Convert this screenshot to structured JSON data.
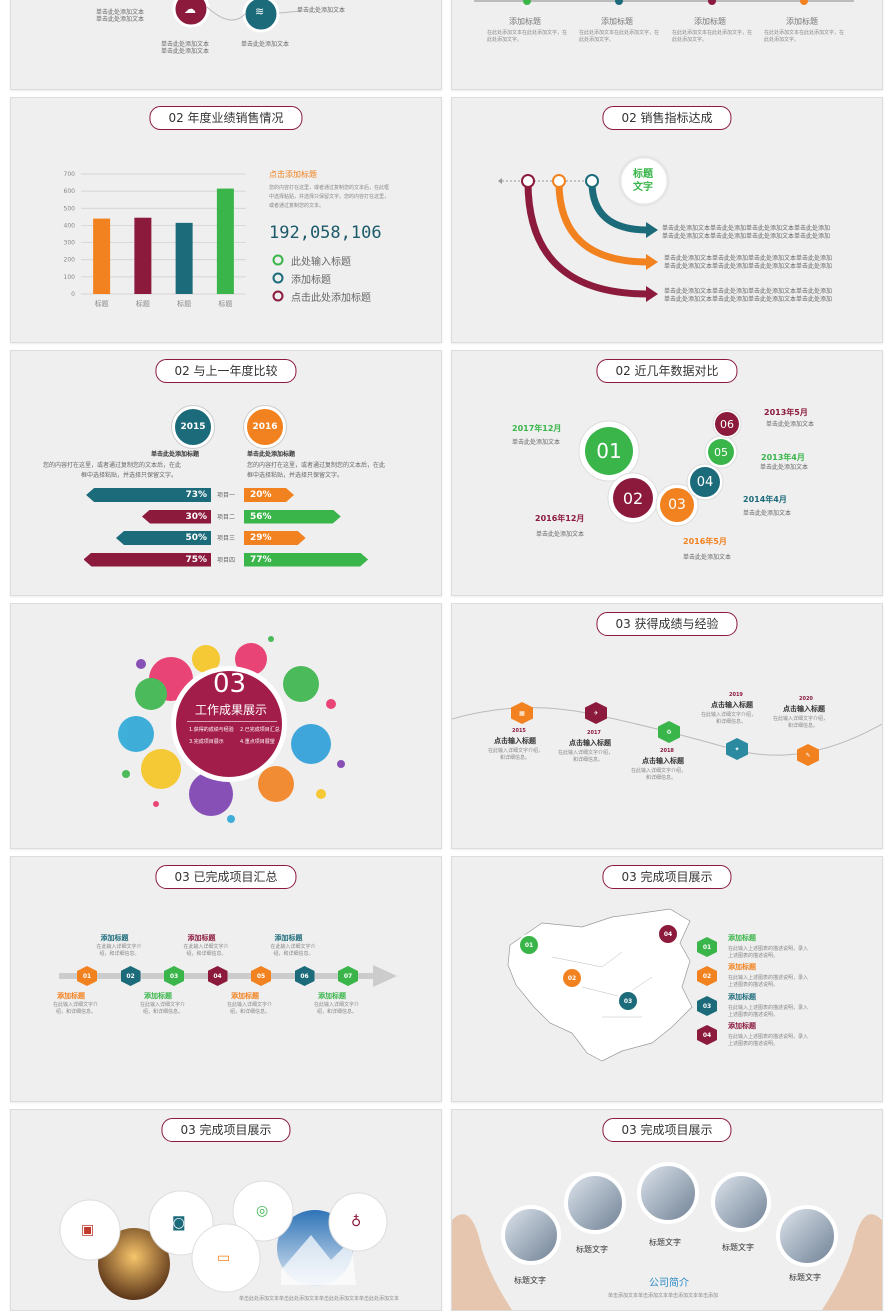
{
  "colors": {
    "orange": "#f28220",
    "wine": "#8b1a3d",
    "teal": "#1c6b7a",
    "green": "#39b54a"
  },
  "s0": {
    "texts": [
      "单击此处添加文本",
      "单击此处添加文本",
      "单击此处添加文本",
      "单击此处添加文本",
      "单击此处添加文本",
      "单击此处添加文本"
    ],
    "icons": [
      "cloud-icon",
      "wifi-icon"
    ]
  },
  "s1": {
    "labels": [
      "添加标题",
      "添加标题",
      "添加标题",
      "添加标题"
    ],
    "desc": [
      "在此处添加文本在此处添加文字，在此处添加文字。",
      "在此处添加文本在此处添加文字，在此处添加文字。",
      "在此处添加文本在此处添加文字，在此处添加文字。",
      "在此处添加文本在此处添加文字，在此处添加文字。"
    ]
  },
  "s2": {
    "title": "02  年度业绩销售情况",
    "heading": "点击添加标题",
    "paragraph": [
      "您的内容打在这里，或者通过复制您的文本后，在此框",
      "中选择粘贴，并选择只保留文字。您的内容打在这里，",
      "或者通过复制您的文本。"
    ],
    "big_number": "192,058,106",
    "legend": [
      "此处输入标题",
      "添加标题",
      "点击此处添加标题"
    ],
    "chart_data": {
      "type": "bar",
      "categories": [
        "标题",
        "标题",
        "标题",
        "标题"
      ],
      "values": [
        440,
        445,
        415,
        615
      ],
      "colors": [
        "#f28220",
        "#8b1a3d",
        "#1c6b7a",
        "#39b54a"
      ],
      "ylim": [
        0,
        700
      ],
      "yticks": [
        "0",
        "100",
        "200",
        "300",
        "400",
        "500",
        "600",
        "700"
      ]
    }
  },
  "s3": {
    "title": "02  销售指标达成",
    "badge": [
      "标题",
      "文字"
    ],
    "lines": [
      "单击此处添加文本单击此处添加单击此处添加文本单击此处添加",
      "单击此处添加文本单击此处添加单击此处添加文本单击此处添加"
    ]
  },
  "s4": {
    "title": "02  与上一年度比较",
    "year_a": "2015",
    "year_b": "2016",
    "head_a": "单击此处添加标题",
    "head_b": "单击此处添加标题",
    "para": [
      "您的内容打在这里，或者通过复制您的文本后，在此",
      "框中选择粘贴，并选择只保留文字。"
    ],
    "rows": [
      {
        "name": "项目一",
        "a": "73%",
        "b": "20%"
      },
      {
        "name": "项目二",
        "a": "30%",
        "b": "56%"
      },
      {
        "name": "项目三",
        "a": "50%",
        "b": "29%"
      },
      {
        "name": "项目四",
        "a": "75%",
        "b": "77%"
      }
    ]
  },
  "s5": {
    "title": "02  近几年数据对比",
    "nums": [
      "01",
      "02",
      "03",
      "04",
      "05",
      "06"
    ],
    "dates": [
      "2017年12月",
      "2016年12月",
      "2016年5月",
      "2014年4月",
      "2013年4月",
      "2013年5月"
    ],
    "desc": "单击此处添加文本"
  },
  "s6": {
    "num": "03",
    "title": "工作成果展示",
    "items": [
      "1.获得的成绩与经验",
      "2.已完成项目汇总",
      "3.完成项目展示",
      "4.重点项目展望"
    ]
  },
  "s7": {
    "title": "03  获得成绩与经验",
    "years": [
      "2015",
      "2017",
      "2018",
      "2019",
      "2020"
    ],
    "head": "点击输入标题",
    "desc": [
      "在此输入详细文字介绍，",
      "和详细信息。"
    ]
  },
  "s8": {
    "title": "03  已完成项目汇总",
    "nums": [
      "01",
      "02",
      "03",
      "04",
      "05",
      "06",
      "07"
    ],
    "head": "添加标题",
    "desc": [
      "在此输入详细文字介",
      "绍，和详细信息。"
    ]
  },
  "s9": {
    "title": "03  完成项目展示",
    "nums": [
      "01",
      "02",
      "03",
      "04"
    ],
    "head": "添加标题",
    "desc": [
      "在此输入上述图表的描述说明，录入",
      "上述图表的描述说明。"
    ]
  },
  "s10": {
    "title": "03  完成项目展示",
    "footer": "单击此处添加文本单击此处添加文本单击此处添加文本单击此处添加文本"
  },
  "s11": {
    "title": "03  完成项目展示",
    "labels": [
      "标题文字",
      "标题文字",
      "标题文字",
      "标题文字",
      "标题文字"
    ],
    "company": "公司简介",
    "footer": "单击添加文本单击添加文本单击添加文本单击添加"
  }
}
